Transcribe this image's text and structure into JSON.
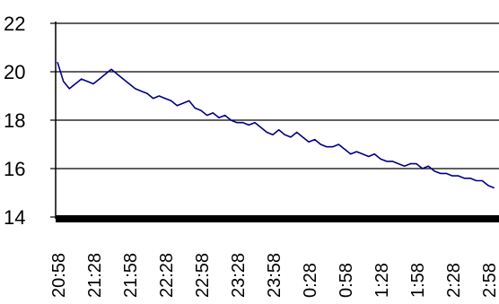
{
  "chart_data": {
    "type": "line",
    "title": "",
    "xlabel": "",
    "ylabel": "",
    "ylim": [
      14,
      22
    ],
    "yticks": [
      14,
      16,
      18,
      20,
      22
    ],
    "grid": "horizontal",
    "colors": {
      "line": "#000080",
      "grid": "#000000",
      "axis": "#000000"
    },
    "x_tick_labels": [
      "20:58",
      "21:28",
      "21:58",
      "22:28",
      "22:58",
      "23:28",
      "23:58",
      "0:28",
      "0:58",
      "1:28",
      "1:58",
      "2:28",
      "2:58"
    ],
    "series": [
      {
        "name": "",
        "x": [
          "20:58",
          "21:03",
          "21:08",
          "21:13",
          "21:18",
          "21:23",
          "21:28",
          "21:33",
          "21:38",
          "21:43",
          "21:48",
          "21:53",
          "21:58",
          "22:03",
          "22:08",
          "22:13",
          "22:18",
          "22:23",
          "22:28",
          "22:33",
          "22:38",
          "22:43",
          "22:48",
          "22:53",
          "22:58",
          "23:03",
          "23:08",
          "23:13",
          "23:18",
          "23:23",
          "23:28",
          "23:33",
          "23:38",
          "23:43",
          "23:48",
          "23:53",
          "23:58",
          "0:03",
          "0:08",
          "0:13",
          "0:18",
          "0:23",
          "0:28",
          "0:33",
          "0:38",
          "0:43",
          "0:48",
          "0:53",
          "0:58",
          "1:03",
          "1:08",
          "1:13",
          "1:18",
          "1:23",
          "1:28",
          "1:33",
          "1:38",
          "1:43",
          "1:48",
          "1:53",
          "1:58",
          "2:03",
          "2:08",
          "2:13",
          "2:18",
          "2:23",
          "2:28",
          "2:33",
          "2:38",
          "2:43",
          "2:48",
          "2:53",
          "2:58",
          "3:03"
        ],
        "values": [
          20.4,
          19.6,
          19.3,
          19.5,
          19.7,
          19.6,
          19.5,
          19.7,
          19.9,
          20.1,
          19.9,
          19.7,
          19.5,
          19.3,
          19.2,
          19.1,
          18.9,
          19.0,
          18.9,
          18.8,
          18.6,
          18.7,
          18.8,
          18.5,
          18.4,
          18.2,
          18.3,
          18.1,
          18.2,
          18.0,
          17.9,
          17.9,
          17.8,
          17.9,
          17.7,
          17.5,
          17.4,
          17.6,
          17.4,
          17.3,
          17.5,
          17.3,
          17.1,
          17.2,
          17.0,
          16.9,
          16.9,
          17.0,
          16.8,
          16.6,
          16.7,
          16.6,
          16.5,
          16.6,
          16.4,
          16.3,
          16.3,
          16.2,
          16.1,
          16.2,
          16.2,
          16.0,
          16.1,
          15.9,
          15.8,
          15.8,
          15.7,
          15.7,
          15.6,
          15.6,
          15.5,
          15.5,
          15.3,
          15.2
        ]
      }
    ]
  }
}
